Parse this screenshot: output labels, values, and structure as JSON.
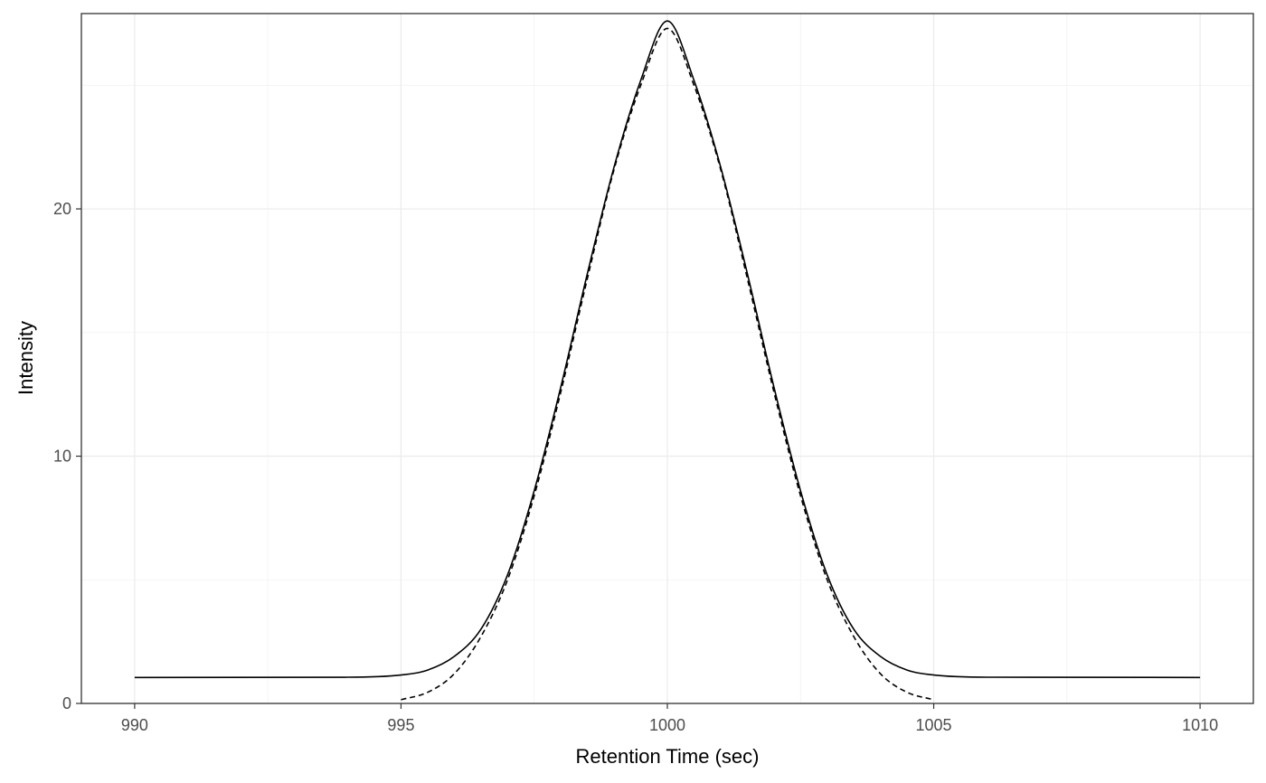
{
  "chart_data": {
    "type": "line",
    "title": "",
    "xlabel": "Retention Time (sec)",
    "ylabel": "Intensity",
    "xlim": [
      989,
      1011
    ],
    "ylim": [
      0,
      27.9
    ],
    "x_ticks": [
      990,
      995,
      1000,
      1005,
      1010
    ],
    "y_ticks": [
      0,
      10,
      20
    ],
    "grid": true,
    "legend": "none",
    "series": [
      {
        "line_style": "solid",
        "color": "#000000",
        "x": [
          990,
          994,
          995,
          995.5,
          996,
          996.5,
          997,
          997.5,
          998,
          998.5,
          999,
          999.5,
          1000,
          1000.5,
          1001,
          1001.5,
          1002,
          1002.5,
          1003,
          1003.5,
          1004,
          1004.5,
          1005,
          1006,
          1010
        ],
        "y": [
          1.05,
          1.06,
          1.15,
          1.35,
          1.9,
          3.0,
          5.2,
          8.6,
          12.8,
          17.4,
          21.7,
          25.2,
          27.6,
          25.2,
          21.7,
          17.4,
          12.8,
          8.6,
          5.2,
          3.0,
          1.9,
          1.35,
          1.15,
          1.06,
          1.05
        ]
      },
      {
        "line_style": "dashed",
        "color": "#000000",
        "x": [
          995,
          995.5,
          996,
          996.5,
          997,
          997.5,
          998,
          998.5,
          999,
          999.5,
          1000,
          1000.5,
          1001,
          1001.5,
          1002,
          1002.5,
          1003,
          1003.5,
          1004,
          1004.5,
          1005
        ],
        "y": [
          0.15,
          0.45,
          1.2,
          2.7,
          5.0,
          8.4,
          12.6,
          17.2,
          21.6,
          25.0,
          27.3,
          25.0,
          21.6,
          17.2,
          12.6,
          8.4,
          5.0,
          2.7,
          1.2,
          0.45,
          0.15
        ]
      }
    ]
  }
}
